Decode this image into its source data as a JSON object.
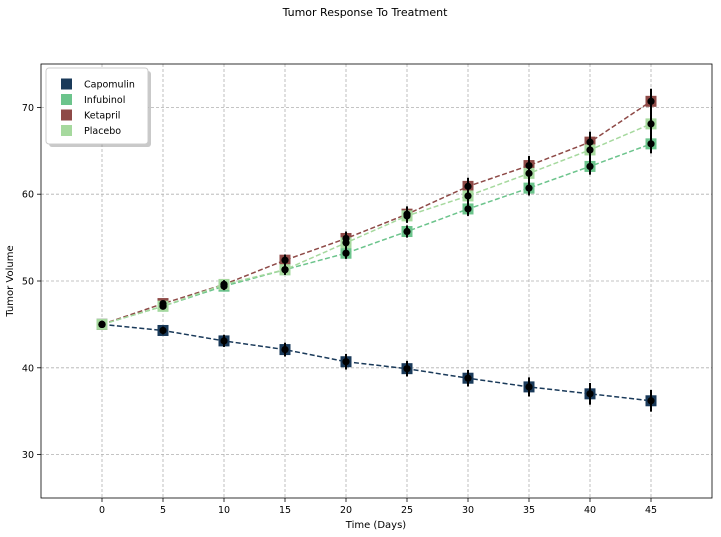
{
  "chart_data": {
    "type": "line",
    "title": "Tumor Response To Treatment",
    "xlabel": "Time (Days)",
    "ylabel": "Tumor Volume",
    "xlim": [
      -5,
      50
    ],
    "ylim": [
      25,
      75
    ],
    "xticks": [
      0,
      5,
      10,
      15,
      20,
      25,
      30,
      35,
      40,
      45
    ],
    "yticks": [
      30,
      40,
      50,
      60,
      70
    ],
    "grid": true,
    "legend_position": "upper-left",
    "x": [
      0,
      5,
      10,
      15,
      20,
      25,
      30,
      35,
      40,
      45
    ],
    "series": [
      {
        "name": "Capomulin",
        "color": "#1a3a5a",
        "values": [
          45.0,
          44.3,
          43.1,
          42.1,
          40.7,
          39.9,
          38.8,
          37.8,
          37.0,
          36.2
        ],
        "errors": [
          0.0,
          0.45,
          0.7,
          0.8,
          0.9,
          0.9,
          0.95,
          1.1,
          1.25,
          1.25
        ]
      },
      {
        "name": "Infubinol",
        "color": "#6cc48c",
        "values": [
          45.0,
          47.1,
          49.4,
          51.3,
          53.2,
          55.7,
          58.3,
          60.7,
          63.2,
          65.8
        ],
        "errors": [
          0.0,
          0.25,
          0.45,
          0.55,
          0.65,
          0.7,
          0.8,
          0.85,
          0.95,
          1.1
        ]
      },
      {
        "name": "Ketapril",
        "color": "#8e4a47",
        "values": [
          45.0,
          47.4,
          49.6,
          52.4,
          54.9,
          57.7,
          60.9,
          63.3,
          66.0,
          70.7
        ],
        "errors": [
          0.0,
          0.3,
          0.5,
          0.65,
          0.8,
          0.9,
          1.0,
          1.1,
          1.2,
          1.45
        ]
      },
      {
        "name": "Placebo",
        "color": "#a6d99e",
        "values": [
          45.0,
          47.1,
          49.6,
          51.3,
          54.4,
          57.5,
          59.8,
          62.4,
          65.1,
          68.1
        ],
        "errors": [
          0.0,
          0.2,
          0.4,
          0.6,
          0.75,
          0.8,
          0.9,
          1.0,
          1.1,
          1.25
        ]
      }
    ]
  }
}
